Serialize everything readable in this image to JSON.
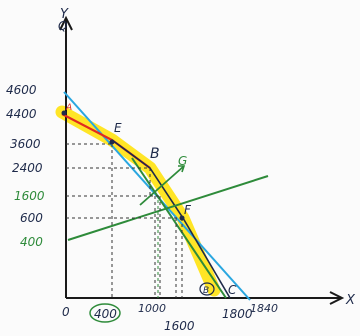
{
  "colors": {
    "axis": "#1a1a1a",
    "blue_line": "#2aa7e0",
    "red_line": "#e02b20",
    "green_line": "#2e8b3a",
    "highlight": "#ffe100",
    "label_dark": "#1e2a4a"
  },
  "axes": {
    "x_label": "X",
    "y_label": "Y",
    "y_label_top": "Q"
  },
  "y_ticks": {
    "t4600": "4600",
    "t4400": "4400",
    "t3600": "3600",
    "t2400": "2400",
    "t1600": "1600",
    "t600": "600",
    "t400": "400"
  },
  "x_ticks": {
    "t0": "0",
    "t400": "400",
    "t1000": "1000",
    "t1600": "1600",
    "t1800": "1800",
    "t1840": "1840"
  },
  "points": {
    "A": "A",
    "E": "E",
    "B": "B",
    "F": "F",
    "G": "G",
    "C": "C",
    "bottom_circled": "B"
  }
}
